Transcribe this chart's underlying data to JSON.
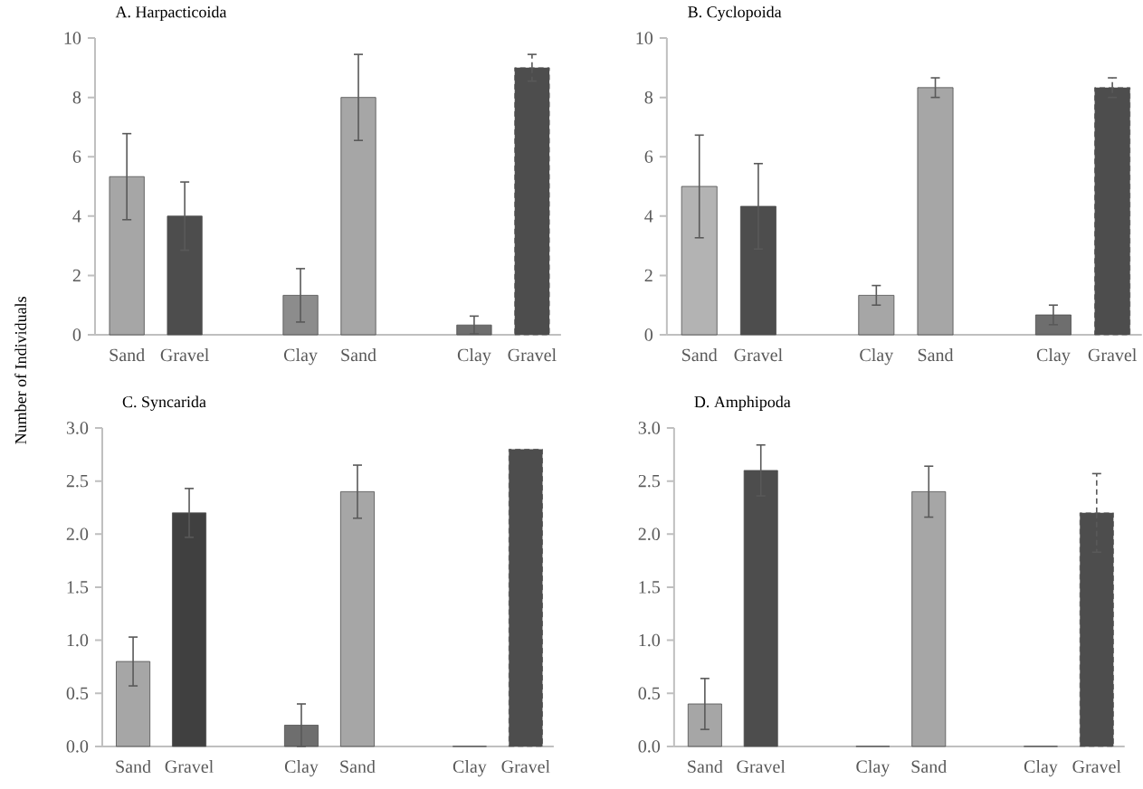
{
  "chart_data": [
    {
      "type": "bar",
      "title": "A. Harpacticoida",
      "ylabel": "Number of Individuals",
      "categories": [
        "Sand",
        "Gravel",
        null,
        "Clay",
        "Sand",
        null,
        "Clay",
        "Gravel"
      ],
      "values": [
        5.33,
        4.0,
        null,
        1.33,
        8.0,
        null,
        0.33,
        9.0
      ],
      "errors": [
        1.45,
        1.15,
        null,
        0.9,
        1.45,
        null,
        0.3,
        0.45
      ],
      "colors": [
        "#a6a6a6",
        "#4d4d4d",
        null,
        "#8c8c8c",
        "#a6a6a6",
        null,
        "#6e6e6e",
        "#4d4d4d"
      ],
      "ylim": [
        0,
        10
      ],
      "yticks": [
        0,
        2,
        4,
        6,
        8,
        10
      ]
    },
    {
      "type": "bar",
      "title": "B. Cyclopoida",
      "categories": [
        "Sand",
        "Gravel",
        null,
        "Clay",
        "Sand",
        null,
        "Clay",
        "Gravel"
      ],
      "values": [
        5.0,
        4.33,
        null,
        1.33,
        8.33,
        null,
        0.67,
        8.33
      ],
      "errors": [
        1.73,
        1.44,
        null,
        0.33,
        0.33,
        null,
        0.33,
        0.33
      ],
      "colors": [
        "#b3b3b3",
        "#4d4d4d",
        null,
        "#a6a6a6",
        "#a6a6a6",
        null,
        "#6e6e6e",
        "#4d4d4d"
      ],
      "ylim": [
        0,
        10
      ],
      "yticks": [
        0,
        2,
        4,
        6,
        8,
        10
      ]
    },
    {
      "type": "bar",
      "title": "C. Syncarida",
      "categories": [
        "Sand",
        "Gravel",
        null,
        "Clay",
        "Sand",
        null,
        "Clay",
        "Gravel"
      ],
      "values": [
        0.8,
        2.2,
        null,
        0.2,
        2.4,
        null,
        0,
        2.8
      ],
      "errors": [
        0.23,
        0.23,
        null,
        0.2,
        0.25,
        null,
        null,
        null
      ],
      "colors": [
        "#a6a6a6",
        "#404040",
        null,
        "#6e6e6e",
        "#a6a6a6",
        null,
        "#6e6e6e",
        "#4d4d4d"
      ],
      "ylim": [
        0,
        3
      ],
      "yticks": [
        {
          "value": 0,
          "label": "0.0"
        },
        {
          "value": 0.5,
          "label": "0.5"
        },
        {
          "value": 1,
          "label": "1.0"
        },
        {
          "value": 1.5,
          "label": "1.5"
        },
        {
          "value": 2,
          "label": "2.0"
        },
        {
          "value": 2.5,
          "label": "2.5"
        },
        {
          "value": 3,
          "label": "3.0"
        }
      ]
    },
    {
      "type": "bar",
      "title": "D. Amphipoda",
      "categories": [
        "Sand",
        "Gravel",
        null,
        "Clay",
        "Sand",
        null,
        "Clay",
        "Gravel"
      ],
      "values": [
        0.4,
        2.6,
        null,
        0,
        2.4,
        null,
        0,
        2.2
      ],
      "errors": [
        0.24,
        0.24,
        null,
        null,
        0.24,
        null,
        null,
        0.37
      ],
      "colors": [
        "#a6a6a6",
        "#4d4d4d",
        null,
        "#6e6e6e",
        "#a6a6a6",
        null,
        "#6e6e6e",
        "#4d4d4d"
      ],
      "ylim": [
        0,
        3
      ],
      "yticks": [
        {
          "value": 0,
          "label": "0.0"
        },
        {
          "value": 0.5,
          "label": "0.5"
        },
        {
          "value": 1,
          "label": "1.0"
        },
        {
          "value": 1.5,
          "label": "1.5"
        },
        {
          "value": 2,
          "label": "2.0"
        },
        {
          "value": 2.5,
          "label": "2.5"
        },
        {
          "value": 3,
          "label": "3.0"
        }
      ]
    }
  ]
}
